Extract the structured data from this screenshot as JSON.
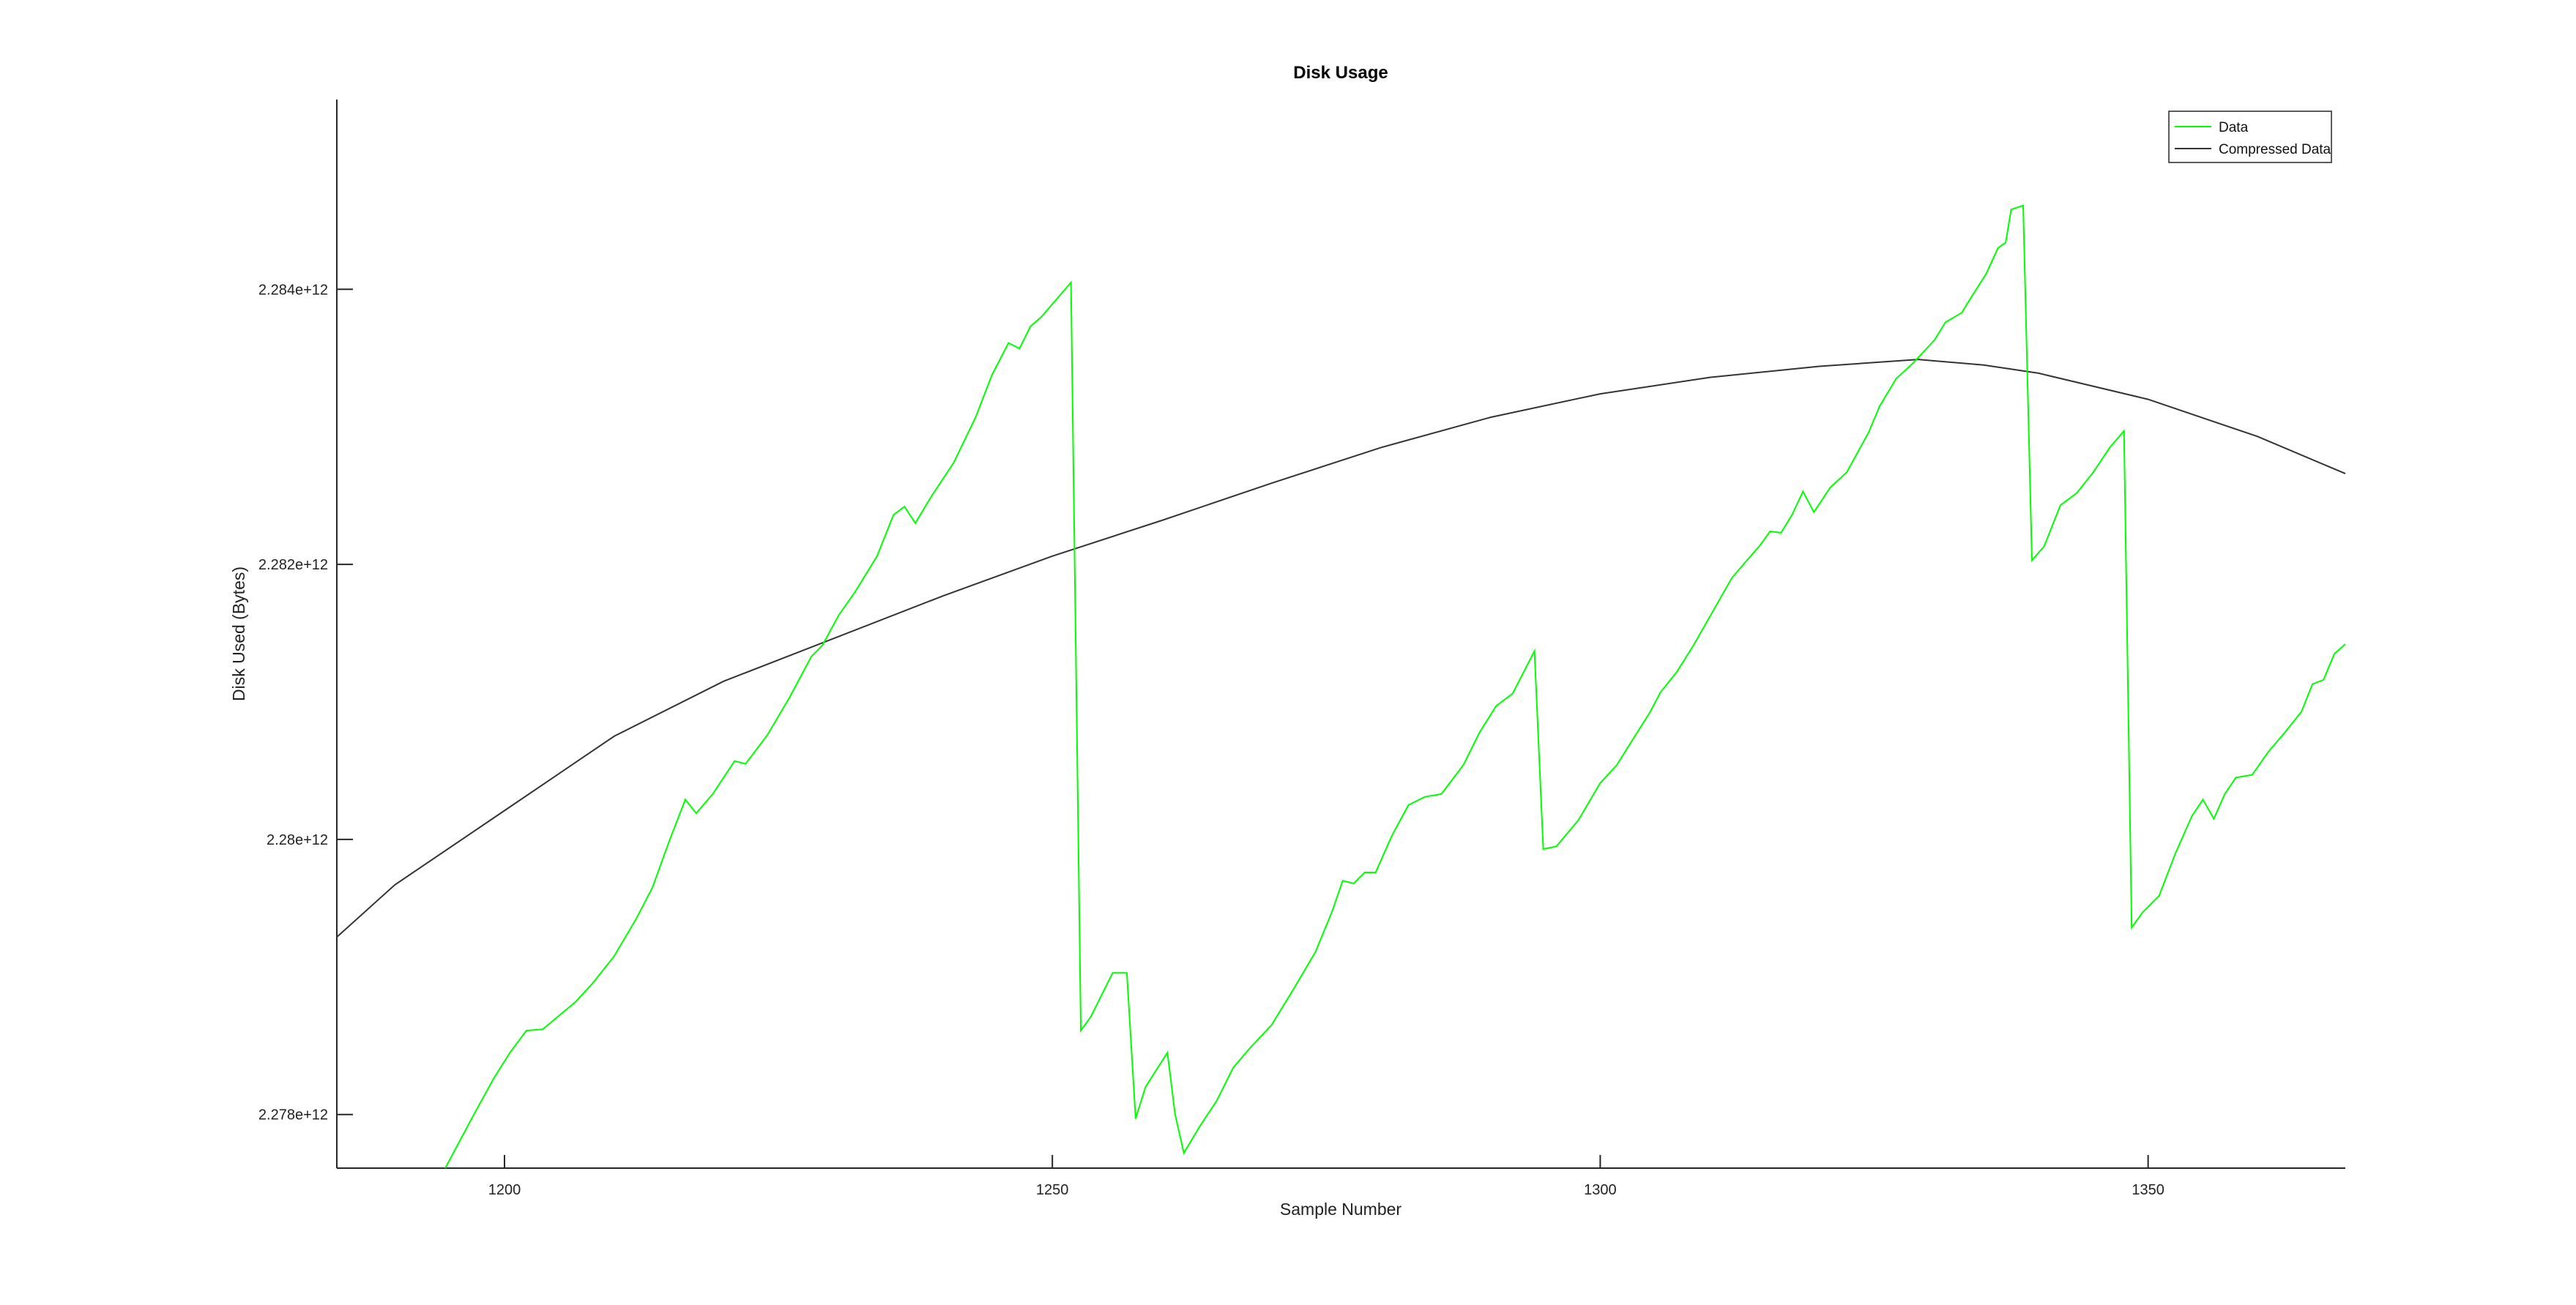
{
  "chart_data": {
    "type": "line",
    "title": "Disk Usage",
    "xlabel": "Sample Number",
    "ylabel": "Disk Used (Bytes)",
    "xlim": [
      1184.7,
      1368
    ],
    "ylim": [
      2277610000000.0,
      2285380000000.0
    ],
    "x_ticks": [
      1200,
      1250,
      1300,
      1350
    ],
    "x_tick_labels": [
      "1200",
      "1250",
      "1300",
      "1350"
    ],
    "y_ticks": [
      2278000000000.0,
      2280000000000.0,
      2282000000000.0,
      2284000000000.0
    ],
    "y_tick_labels": [
      "2.278e+12",
      "2.28e+12",
      "2.282e+12",
      "2.284e+12"
    ],
    "grid": false,
    "legend_position": "top-right",
    "series": [
      {
        "name": "Data",
        "color": "#00ff00",
        "points": [
          [
            1194.6,
            2277610000000.0
          ],
          [
            1197,
            2277970000000.0
          ],
          [
            1199,
            2278260000000.0
          ],
          [
            1200.5,
            2278450000000.0
          ],
          [
            1202,
            2278610000000.0
          ],
          [
            1203.5,
            2278620000000.0
          ],
          [
            1205,
            2278720000000.0
          ],
          [
            1206.5,
            2278820000000.0
          ],
          [
            1208,
            2278950000000.0
          ],
          [
            1210,
            2279150000000.0
          ],
          [
            1212,
            2279420000000.0
          ],
          [
            1213.5,
            2279650000000.0
          ],
          [
            1215,
            2279980000000.0
          ],
          [
            1216.5,
            2280290000000.0
          ],
          [
            1217.5,
            2280190000000.0
          ],
          [
            1219,
            2280330000000.0
          ],
          [
            1221,
            2280570000000.0
          ],
          [
            1222,
            2280550000000.0
          ],
          [
            1224,
            2280760000000.0
          ],
          [
            1226,
            2281030000000.0
          ],
          [
            1228,
            2281330000000.0
          ],
          [
            1229,
            2281410000000.0
          ],
          [
            1230.5,
            2281630000000.0
          ],
          [
            1232,
            2281800000000.0
          ],
          [
            1234,
            2282060000000.0
          ],
          [
            1235.5,
            2282360000000.0
          ],
          [
            1236.5,
            2282420000000.0
          ],
          [
            1237.5,
            2282300000000.0
          ],
          [
            1239,
            2282500000000.0
          ],
          [
            1241,
            2282740000000.0
          ],
          [
            1243,
            2283070000000.0
          ],
          [
            1244.5,
            2283380000000.0
          ],
          [
            1246,
            2283610000000.0
          ],
          [
            1247,
            2283570000000.0
          ],
          [
            1248,
            2283730000000.0
          ],
          [
            1249,
            2283800000000.0
          ],
          [
            1251.7,
            2284050000000.0
          ],
          [
            1252.6,
            2278610000000.0
          ],
          [
            1253.5,
            2278710000000.0
          ],
          [
            1255.5,
            2279030000000.0
          ],
          [
            1256.8,
            2279030000000.0
          ],
          [
            1257.6,
            2277970000000.0
          ],
          [
            1258.5,
            2278200000000.0
          ],
          [
            1260.5,
            2278450000000.0
          ],
          [
            1261.2,
            2278000000000.0
          ],
          [
            1262,
            2277720000000.0
          ],
          [
            1263.5,
            2277920000000.0
          ],
          [
            1265,
            2278100000000.0
          ],
          [
            1266.5,
            2278340000000.0
          ],
          [
            1268,
            2278480000000.0
          ],
          [
            1270,
            2278650000000.0
          ],
          [
            1272,
            2278910000000.0
          ],
          [
            1274,
            2279180000000.0
          ],
          [
            1275.5,
            2279470000000.0
          ],
          [
            1276.5,
            2279700000000.0
          ],
          [
            1277.5,
            2279680000000.0
          ],
          [
            1278.5,
            2279760000000.0
          ],
          [
            1279.5,
            2279760000000.0
          ],
          [
            1281,
            2280030000000.0
          ],
          [
            1282.5,
            2280250000000.0
          ],
          [
            1284,
            2280310000000.0
          ],
          [
            1285.5,
            2280330000000.0
          ],
          [
            1287.5,
            2280540000000.0
          ],
          [
            1289,
            2280780000000.0
          ],
          [
            1290.5,
            2280970000000.0
          ],
          [
            1292,
            2281060000000.0
          ],
          [
            1294,
            2281370000000.0
          ],
          [
            1294.8,
            2279930000000.0
          ],
          [
            1296,
            2279950000000.0
          ],
          [
            1298,
            2280140000000.0
          ],
          [
            1300,
            2280410000000.0
          ],
          [
            1301.5,
            2280540000000.0
          ],
          [
            1303,
            2280730000000.0
          ],
          [
            1304.5,
            2280920000000.0
          ],
          [
            1305.5,
            2281070000000.0
          ],
          [
            1307,
            2281220000000.0
          ],
          [
            1308.5,
            2281410000000.0
          ],
          [
            1310,
            2281620000000.0
          ],
          [
            1312,
            2281900000000.0
          ],
          [
            1313.5,
            2282040000000.0
          ],
          [
            1314.5,
            2282130000000.0
          ],
          [
            1315.5,
            2282240000000.0
          ],
          [
            1316.5,
            2282230000000.0
          ],
          [
            1317.5,
            2282360000000.0
          ],
          [
            1318.5,
            2282530000000.0
          ],
          [
            1319.5,
            2282380000000.0
          ],
          [
            1321,
            2282560000000.0
          ],
          [
            1322.5,
            2282670000000.0
          ],
          [
            1324.5,
            2282960000000.0
          ],
          [
            1325.5,
            2283150000000.0
          ],
          [
            1327,
            2283350000000.0
          ],
          [
            1328.5,
            2283460000000.0
          ],
          [
            1330.5,
            2283630000000.0
          ],
          [
            1331.5,
            2283760000000.0
          ],
          [
            1333,
            2283830000000.0
          ],
          [
            1334,
            2283960000000.0
          ],
          [
            1335.2,
            2284110000000.0
          ],
          [
            1336.3,
            2284300000000.0
          ],
          [
            1337,
            2284340000000.0
          ],
          [
            1337.5,
            2284580000000.0
          ],
          [
            1338.6,
            2284610000000.0
          ],
          [
            1339.4,
            2282030000000.0
          ],
          [
            1340.5,
            2282130000000.0
          ],
          [
            1342,
            2282430000000.0
          ],
          [
            1343.5,
            2282520000000.0
          ],
          [
            1345,
            2282670000000.0
          ],
          [
            1346.5,
            2282850000000.0
          ],
          [
            1347.8,
            2282970000000.0
          ],
          [
            1348.5,
            2279360000000.0
          ],
          [
            1349.5,
            2279470000000.0
          ],
          [
            1351,
            2279590000000.0
          ],
          [
            1352.5,
            2279900000000.0
          ],
          [
            1354,
            2280170000000.0
          ],
          [
            1355,
            2280290000000.0
          ],
          [
            1356,
            2280150000000.0
          ],
          [
            1357,
            2280330000000.0
          ],
          [
            1358,
            2280450000000.0
          ],
          [
            1359.5,
            2280470000000.0
          ],
          [
            1361,
            2280640000000.0
          ],
          [
            1362.5,
            2280780000000.0
          ],
          [
            1364,
            2280930000000.0
          ],
          [
            1365,
            2281130000000.0
          ],
          [
            1366,
            2281160000000.0
          ],
          [
            1367,
            2281350000000.0
          ],
          [
            1368,
            2281420000000.0
          ]
        ]
      },
      {
        "name": "Compressed Data",
        "color": "#333333",
        "points": [
          [
            1184.7,
            2279290000000.0
          ],
          [
            1190,
            2279670000000.0
          ],
          [
            1200,
            2280210000000.0
          ],
          [
            1210,
            2280750000000.0
          ],
          [
            1220,
            2281150000000.0
          ],
          [
            1230,
            2281460000000.0
          ],
          [
            1240,
            2281770000000.0
          ],
          [
            1250,
            2282060000000.0
          ],
          [
            1260,
            2282320000000.0
          ],
          [
            1270,
            2282590000000.0
          ],
          [
            1280,
            2282850000000.0
          ],
          [
            1290,
            2283070000000.0
          ],
          [
            1300,
            2283240000000.0
          ],
          [
            1310,
            2283360000000.0
          ],
          [
            1320,
            2283440000000.0
          ],
          [
            1329,
            2283490000000.0
          ],
          [
            1335,
            2283450000000.0
          ],
          [
            1340,
            2283390000000.0
          ],
          [
            1350,
            2283200000000.0
          ],
          [
            1360,
            2282930000000.0
          ],
          [
            1368,
            2282660000000.0
          ]
        ]
      }
    ]
  }
}
